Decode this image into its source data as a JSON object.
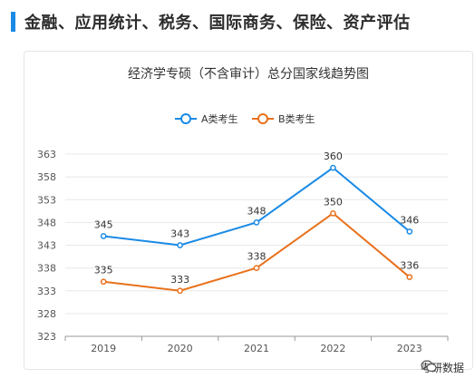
{
  "heading": "金融、应用统计、税务、国际商务、保险、资产评估",
  "watermark": "考研数据",
  "colors": {
    "accent": "#1a8ae5",
    "series_a": "#1a8ae5",
    "series_b": "#e8711c",
    "grid": "#e8e8e8"
  },
  "chart_data": {
    "type": "line",
    "title": "经济学专硕（不含审计）总分国家线趋势图",
    "categories": [
      "2019",
      "2020",
      "2021",
      "2022",
      "2023"
    ],
    "yticks": [
      323,
      328,
      333,
      338,
      343,
      348,
      353,
      358,
      363
    ],
    "ylim": [
      323,
      363
    ],
    "grid": true,
    "legend_position": "top-center",
    "series": [
      {
        "name": "A类考生",
        "values": [
          345,
          343,
          348,
          360,
          346
        ],
        "color": "#1a8ae5"
      },
      {
        "name": "B类考生",
        "values": [
          335,
          333,
          338,
          350,
          336
        ],
        "color": "#e8711c"
      }
    ]
  }
}
